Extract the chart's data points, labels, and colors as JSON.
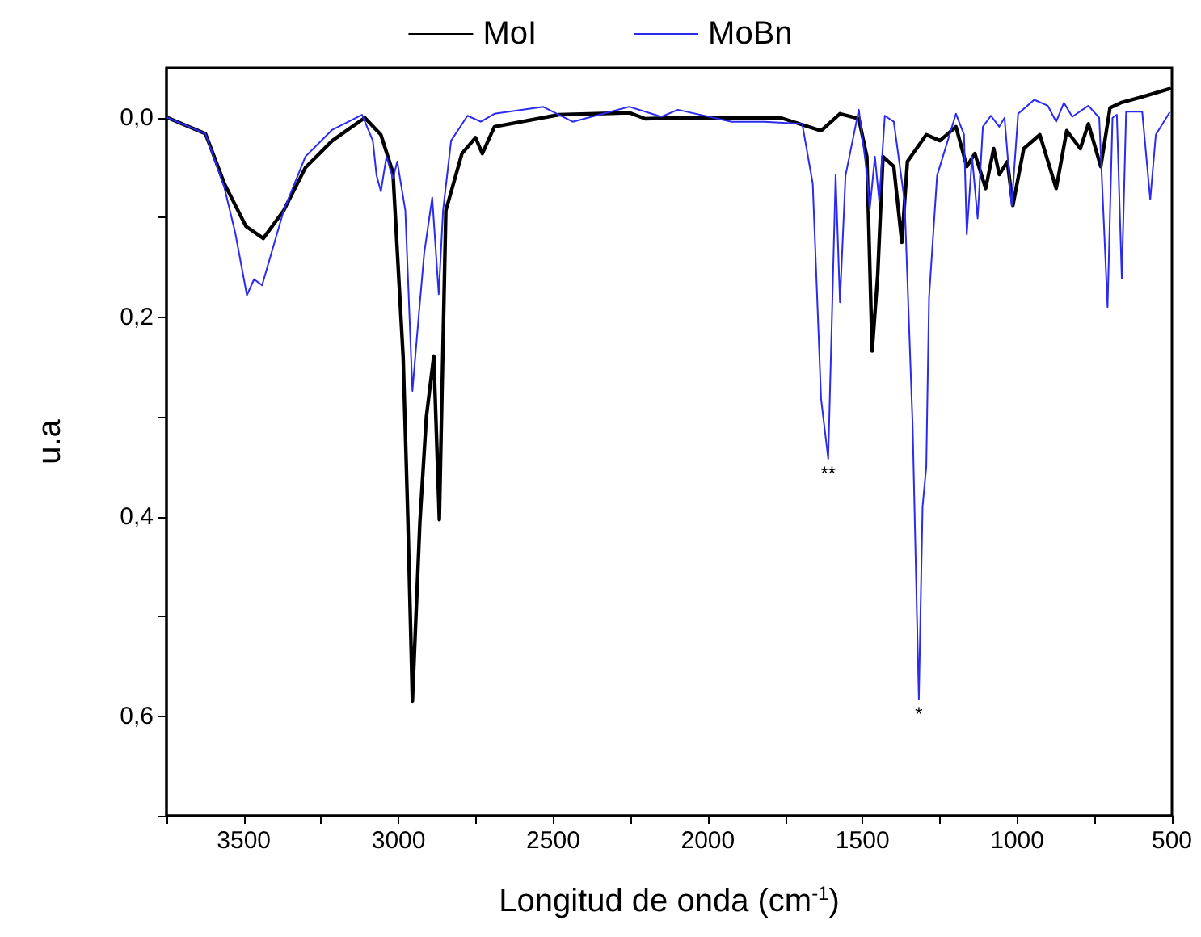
{
  "chart_data": {
    "type": "line",
    "xlabel": "Longitud de onda (cm$^{-1}$)",
    "ylabel": "u.a",
    "xlim": [
      3750,
      500
    ],
    "ylim": [
      0.7,
      -0.05
    ],
    "xticks": [
      {
        "value": 3750,
        "label": null
      },
      3500,
      {
        "value": 3250,
        "label": null
      },
      3000,
      {
        "value": 2750,
        "label": null
      },
      2500,
      {
        "value": 2250,
        "label": null
      },
      2000,
      {
        "value": 1750,
        "label": null
      },
      1500,
      {
        "value": 1250,
        "label": null
      },
      1000,
      {
        "value": 750,
        "label": null
      },
      500
    ],
    "yticks": [
      {
        "value": 0,
        "label": "0,0"
      },
      {
        "value": 0.1,
        "label": null
      },
      {
        "value": 0.2,
        "label": "0,2"
      },
      {
        "value": 0.3,
        "label": null
      },
      {
        "value": 0.4,
        "label": "0,4"
      },
      {
        "value": 0.5,
        "label": null
      },
      {
        "value": 0.6,
        "label": "0,6"
      },
      {
        "value": 0.7,
        "label": null
      }
    ],
    "grid": false,
    "legend": "top",
    "line_style": "solid",
    "marker": "none",
    "series": [
      {
        "name": "MoI",
        "color": "#000000",
        "x": [
          3746,
          3624,
          3563,
          3493,
          3437,
          3371,
          3301,
          3214,
          3109,
          3057,
          3018,
          2985,
          2970,
          2955,
          2931,
          2910,
          2886,
          2868,
          2847,
          2795,
          2751,
          2729,
          2690,
          2481,
          2254,
          2202,
          2097,
          1765,
          1634,
          1573,
          1512,
          1486,
          1469,
          1451,
          1434,
          1399,
          1373,
          1355,
          1294,
          1250,
          1198,
          1163,
          1137,
          1102,
          1076,
          1058,
          1032,
          1014,
          979,
          927,
          874,
          840,
          796,
          770,
          730,
          700,
          665,
          596,
          508
        ],
        "values": [
          0.0,
          0.016,
          0.066,
          0.109,
          0.121,
          0.093,
          0.05,
          0.023,
          0.0,
          0.017,
          0.055,
          0.24,
          0.4,
          0.585,
          0.406,
          0.3,
          0.239,
          0.403,
          0.093,
          0.036,
          0.02,
          0.036,
          0.009,
          -0.003,
          -0.005,
          0.001,
          0.0,
          0.0,
          0.013,
          -0.004,
          0.001,
          0.039,
          0.234,
          0.158,
          0.039,
          0.049,
          0.125,
          0.044,
          0.017,
          0.023,
          0.009,
          0.049,
          0.036,
          0.071,
          0.031,
          0.057,
          0.044,
          0.088,
          0.031,
          0.017,
          0.071,
          0.013,
          0.031,
          0.006,
          0.049,
          -0.01,
          -0.015,
          -0.021,
          -0.029
        ]
      },
      {
        "name": "MoBn",
        "color": "#2a2af0",
        "x": [
          3746,
          3624,
          3563,
          3528,
          3490,
          3467,
          3441,
          3371,
          3301,
          3214,
          3118,
          3083,
          3071,
          3057,
          3039,
          3018,
          3004,
          2978,
          2955,
          2934,
          2917,
          2891,
          2870,
          2856,
          2830,
          2777,
          2734,
          2690,
          2533,
          2437,
          2254,
          2150,
          2097,
          1923,
          1818,
          1695,
          1661,
          1634,
          1611,
          1599,
          1587,
          1573,
          1555,
          1512,
          1486,
          1477,
          1460,
          1446,
          1428,
          1399,
          1364,
          1338,
          1318,
          1306,
          1294,
          1285,
          1259,
          1198,
          1172,
          1163,
          1146,
          1128,
          1111,
          1085,
          1058,
          1041,
          1018,
          997,
          945,
          901,
          874,
          849,
          822,
          770,
          735,
          708,
          692,
          678,
          662,
          648,
          596,
          570,
          552,
          508
        ],
        "values": [
          0.0,
          0.016,
          0.07,
          0.115,
          0.178,
          0.162,
          0.168,
          0.093,
          0.039,
          0.012,
          -0.003,
          0.023,
          0.058,
          0.074,
          0.039,
          0.061,
          0.044,
          0.093,
          0.274,
          0.196,
          0.136,
          0.08,
          0.177,
          0.093,
          0.023,
          -0.002,
          0.004,
          -0.004,
          -0.011,
          0.004,
          -0.011,
          -0.001,
          -0.008,
          0.004,
          0.004,
          0.006,
          0.066,
          0.282,
          0.342,
          0.201,
          0.057,
          0.185,
          0.058,
          -0.008,
          0.055,
          0.093,
          0.039,
          0.084,
          -0.002,
          0.004,
          0.084,
          0.309,
          0.583,
          0.39,
          0.35,
          0.18,
          0.058,
          -0.004,
          0.017,
          0.117,
          0.039,
          0.101,
          0.009,
          -0.002,
          0.009,
          0.0,
          0.088,
          -0.004,
          -0.018,
          -0.012,
          0.004,
          -0.015,
          -0.001,
          -0.012,
          0.0,
          0.19,
          0.0,
          -0.003,
          0.161,
          -0.006,
          -0.006,
          0.082,
          0.017,
          -0.005
        ]
      }
    ],
    "annotations": [
      {
        "text": "**",
        "x": 1611,
        "y": 0.342
      },
      {
        "text": "*",
        "x": 1318,
        "y": 0.583
      }
    ]
  }
}
